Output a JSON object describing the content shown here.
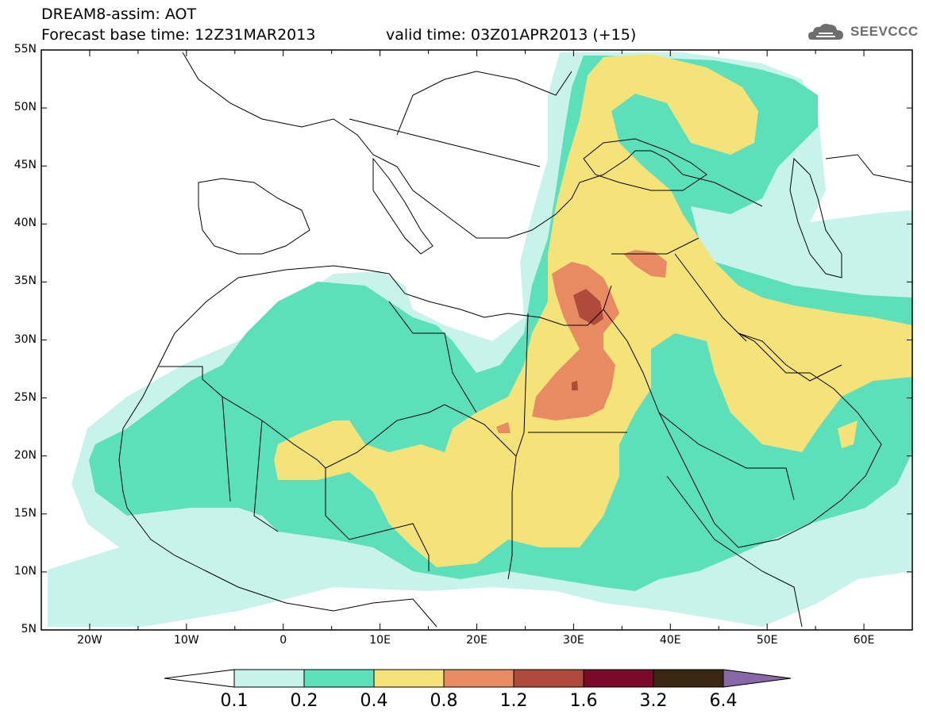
{
  "header": {
    "title": "DREAM8-assim: AOT",
    "base_time": "Forecast base time: 12Z31MAR2013",
    "valid_time": "valid time: 03Z01APR2013 (+15)"
  },
  "logo": {
    "text": "SEEVCCC",
    "icon": "cloud-icon"
  },
  "lat_labels": [
    "55N",
    "50N",
    "45N",
    "40N",
    "35N",
    "30N",
    "25N",
    "20N",
    "15N",
    "10N",
    "5N"
  ],
  "lon_labels": [
    "20W",
    "10W",
    "0",
    "10E",
    "20E",
    "30E",
    "40E",
    "50E",
    "60E"
  ],
  "colorbar": {
    "labels": [
      "0.1",
      "0.2",
      "0.4",
      "0.8",
      "1.2",
      "1.6",
      "3.2",
      "6.4"
    ],
    "colors": [
      "#c8f2ec",
      "#5ce0bb",
      "#f5e37a",
      "#e88a62",
      "#b04a3a",
      "#7a0a2a",
      "#3a2612",
      "#8a68a8"
    ]
  },
  "fill_colors": {
    "c01": "#c8f2ec",
    "c02": "#5ce0bb",
    "c04": "#f5e37a",
    "c08": "#e88a62",
    "c12": "#b04a3a"
  }
}
